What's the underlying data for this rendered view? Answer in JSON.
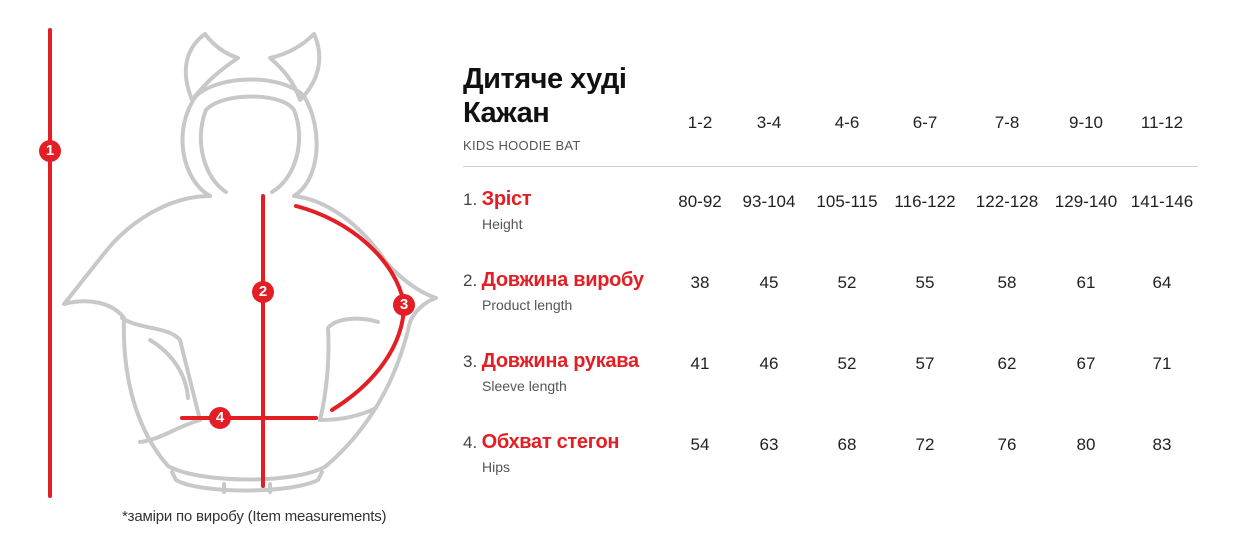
{
  "figure": {
    "markers": [
      "1",
      "2",
      "3",
      "4"
    ],
    "note": "*заміри по виробу (Item measurements)",
    "accent_color": "#e31e24",
    "outline_color": "#c8c8c8"
  },
  "product": {
    "title_line1": "Дитяче худі",
    "title_line2": "Кажан",
    "subtitle": "KIDS HOODIE BAT"
  },
  "table": {
    "sizes": [
      "1-2",
      "3-4",
      "4-6",
      "6-7",
      "7-8",
      "9-10",
      "11-12"
    ],
    "rows": [
      {
        "num": "1.",
        "label": "Зріст",
        "label_en": "Height",
        "values": [
          "80-92",
          "93-104",
          "105-115",
          "116-122",
          "122-128",
          "129-140",
          "141-146"
        ]
      },
      {
        "num": "2.",
        "label": "Довжина виробу",
        "label_en": "Product length",
        "values": [
          "38",
          "45",
          "52",
          "55",
          "58",
          "61",
          "64"
        ]
      },
      {
        "num": "3.",
        "label": "Довжина рукава",
        "label_en": "Sleeve length",
        "values": [
          "41",
          "46",
          "52",
          "57",
          "62",
          "67",
          "71"
        ]
      },
      {
        "num": "4.",
        "label": "Обхват стегон",
        "label_en": "Hips",
        "values": [
          "54",
          "63",
          "68",
          "72",
          "76",
          "80",
          "83"
        ]
      }
    ]
  }
}
